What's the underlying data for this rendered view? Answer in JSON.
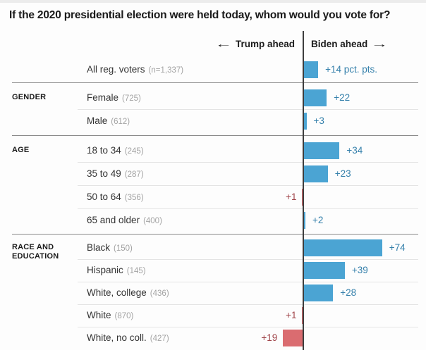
{
  "title": "If the 2020 presidential election were held today, whom would you vote for?",
  "axis_header": {
    "trump_label": "Trump ahead",
    "biden_label": "Biden ahead",
    "left_arrow": "←",
    "right_arrow": "→"
  },
  "colors": {
    "biden_bar": "#4ba4d3",
    "biden_text": "#3580ab",
    "trump_bar": "#da6c70",
    "trump_text": "#a04449"
  },
  "chart_data": {
    "type": "bar",
    "orientation": "horizontal-diverging",
    "unit": "pct. pts.",
    "axis_range_note": "bars diverge from zero line; left = Trump ahead, right = Biden ahead",
    "groups": [
      {
        "label": "",
        "rows": [
          {
            "label": "All reg. voters",
            "n": "(n=1,337)",
            "side": "biden",
            "value": 14,
            "value_label": "+14 pct. pts."
          }
        ]
      },
      {
        "label": "GENDER",
        "rows": [
          {
            "label": "Female",
            "n": "(725)",
            "side": "biden",
            "value": 22,
            "value_label": "+22"
          },
          {
            "label": "Male",
            "n": "(612)",
            "side": "biden",
            "value": 3,
            "value_label": "+3"
          }
        ]
      },
      {
        "label": "AGE",
        "rows": [
          {
            "label": "18 to 34",
            "n": "(245)",
            "side": "biden",
            "value": 34,
            "value_label": "+34"
          },
          {
            "label": "35 to 49",
            "n": "(287)",
            "side": "biden",
            "value": 23,
            "value_label": "+23"
          },
          {
            "label": "50 to 64",
            "n": "(356)",
            "side": "trump",
            "value": 1,
            "value_label": "+1"
          },
          {
            "label": "65 and older",
            "n": "(400)",
            "side": "biden",
            "value": 2,
            "value_label": "+2"
          }
        ]
      },
      {
        "label": "RACE AND EDUCATION",
        "rows": [
          {
            "label": "Black",
            "n": "(150)",
            "side": "biden",
            "value": 74,
            "value_label": "+74"
          },
          {
            "label": "Hispanic",
            "n": "(145)",
            "side": "biden",
            "value": 39,
            "value_label": "+39"
          },
          {
            "label": "White, college",
            "n": "(436)",
            "side": "biden",
            "value": 28,
            "value_label": "+28"
          },
          {
            "label": "White",
            "n": "(870)",
            "side": "trump",
            "value": 1,
            "value_label": "+1"
          },
          {
            "label": "White, no coll.",
            "n": "(427)",
            "side": "trump",
            "value": 19,
            "value_label": "+19"
          }
        ]
      }
    ]
  }
}
